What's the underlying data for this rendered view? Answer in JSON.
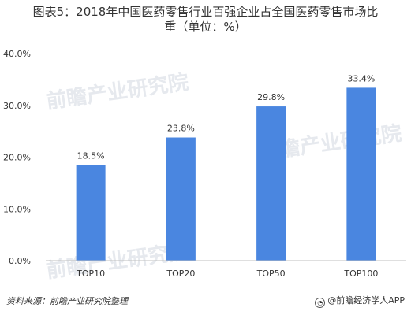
{
  "title": {
    "line1": "图表5：2018年中国医药零售行业百强企业占全国医药零售市场比",
    "line2": "重（单位：%）"
  },
  "watermark": "前瞻产业研究院",
  "chart_data": {
    "type": "bar",
    "categories": [
      "TOP10",
      "TOP20",
      "TOP50",
      "TOP100"
    ],
    "values": [
      18.5,
      23.8,
      29.8,
      33.4
    ],
    "value_labels": [
      "18.5%",
      "23.8%",
      "29.8%",
      "33.4%"
    ],
    "ylim": [
      0,
      40
    ],
    "y_ticks": [
      "0.0%",
      "10.0%",
      "20.0%",
      "30.0%",
      "40.0%"
    ],
    "y_tick_values": [
      0,
      10,
      20,
      30,
      40
    ],
    "bar_color": "#4a86e0",
    "grid": false,
    "xlabel": "",
    "ylabel": ""
  },
  "footer": {
    "source": "资料来源：前瞻产业研究院整理",
    "brand": "@前瞻经济学人APP",
    "brand_icon": "bubble-logo-icon"
  }
}
